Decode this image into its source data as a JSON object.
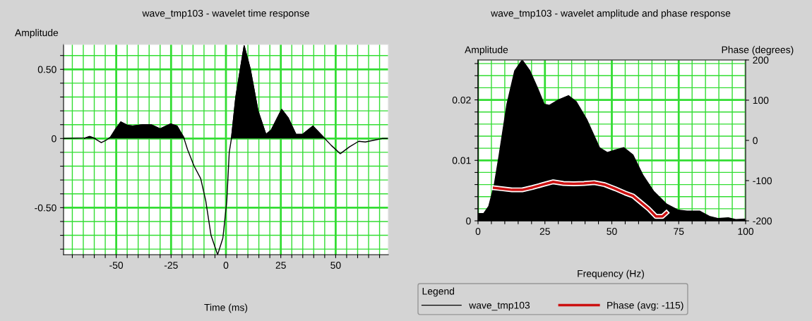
{
  "chart_data": [
    {
      "type": "line",
      "title": "wave_tmp103 - wavelet time response",
      "xlabel": "Time (ms)",
      "ylabel": "Amplitude",
      "xlim": [
        -74,
        74
      ],
      "ylim": [
        -0.84,
        0.68
      ],
      "xticks": [
        {
          "value": -70,
          "label": null
        },
        {
          "value": -65,
          "label": null
        },
        {
          "value": -60,
          "label": null
        },
        {
          "value": -55,
          "label": null
        },
        -50,
        {
          "value": -45,
          "label": null
        },
        {
          "value": -40,
          "label": null
        },
        {
          "value": -35,
          "label": null
        },
        {
          "value": -30,
          "label": null
        },
        -25,
        {
          "value": -20,
          "label": null
        },
        {
          "value": -15,
          "label": null
        },
        {
          "value": -10,
          "label": null
        },
        {
          "value": -5,
          "label": null
        },
        0,
        {
          "value": 5,
          "label": null
        },
        {
          "value": 10,
          "label": null
        },
        {
          "value": 15,
          "label": null
        },
        {
          "value": 20,
          "label": null
        },
        25,
        {
          "value": 30,
          "label": null
        },
        {
          "value": 35,
          "label": null
        },
        {
          "value": 40,
          "label": null
        },
        {
          "value": 45,
          "label": null
        },
        50,
        {
          "value": 55,
          "label": null
        },
        {
          "value": 60,
          "label": null
        },
        {
          "value": 65,
          "label": null
        },
        {
          "value": 70,
          "label": null
        }
      ],
      "yticks": [
        {
          "value": -0.8,
          "label": null
        },
        {
          "value": -0.7,
          "label": null
        },
        {
          "value": -0.6,
          "label": null
        },
        {
          "value": -0.5,
          "label": "-0.50"
        },
        {
          "value": -0.4,
          "label": null
        },
        {
          "value": -0.3,
          "label": null
        },
        {
          "value": -0.2,
          "label": null
        },
        {
          "value": -0.1,
          "label": null
        },
        0,
        {
          "value": 0.1,
          "label": null
        },
        {
          "value": 0.2,
          "label": null
        },
        {
          "value": 0.3,
          "label": null
        },
        {
          "value": 0.4,
          "label": null
        },
        {
          "value": 0.5,
          "label": "0.50"
        },
        {
          "value": 0.6,
          "label": null
        }
      ],
      "grid": true,
      "series": [
        {
          "type": "area",
          "color": "#000000",
          "x": [
            -64.5,
            -64,
            -62.1,
            -60.4,
            -59.5,
            null,
            -53.5,
            -52.6,
            -50.2,
            -47.9,
            -44.9,
            -42.5,
            -37.7,
            -34.2,
            -30,
            -25.2,
            -22.3,
            -19.3,
            -19,
            null,
            2.5,
            4.5,
            8.3,
            11.1,
            14.6,
            18.2,
            20.6,
            25.4,
            28.3,
            31.9,
            34.9,
            39.6,
            45
          ],
          "values": [
            0,
            0.005,
            0.015,
            0.005,
            0,
            null,
            0,
            0.01,
            0.07,
            0.12,
            0.095,
            0.09,
            0.1,
            0.1,
            0.07,
            0.105,
            0.09,
            0.01,
            0,
            null,
            0,
            0.3,
            0.67,
            0.5,
            0.2,
            0.03,
            0.06,
            0.21,
            0.15,
            0.03,
            0.03,
            0.09,
            0
          ]
        },
        {
          "color": "#000000",
          "x": [
            -74,
            -64,
            -62.1,
            -60.4,
            -56.8,
            -54.4,
            -52.6,
            -50.2,
            -47.9,
            -44.9,
            -42.5,
            -37.7,
            -34.2,
            -30,
            -25.2,
            -22.3,
            -19.3,
            -17.5,
            -14.5,
            -11.5,
            -9.2,
            -6.8,
            -3.8,
            -1.4,
            0.4,
            1.5,
            2.5,
            4.5,
            8.3,
            11.1,
            14.6,
            18.2,
            20.6,
            25.4,
            28.3,
            31.9,
            34.9,
            39.6,
            45,
            48,
            52.1,
            56.3,
            60.5,
            63.5,
            68.2,
            71.2,
            74
          ],
          "values": [
            0,
            0.005,
            0.015,
            0.005,
            -0.03,
            -0.01,
            0.01,
            0.07,
            0.12,
            0.095,
            0.09,
            0.1,
            0.1,
            0.07,
            0.105,
            0.09,
            0.01,
            -0.08,
            -0.2,
            -0.29,
            -0.45,
            -0.7,
            -0.84,
            -0.72,
            -0.45,
            -0.1,
            0,
            0.3,
            0.67,
            0.5,
            0.2,
            0.03,
            0.06,
            0.21,
            0.15,
            0.03,
            0.03,
            0.09,
            0,
            -0.05,
            -0.11,
            -0.06,
            -0.02,
            -0.025,
            -0.01,
            0,
            0
          ]
        }
      ]
    },
    {
      "type": "area",
      "title": "wave_tmp103 - wavelet amplitude and phase response",
      "xlabel": "Frequency (Hz)",
      "ylabel": "Amplitude",
      "y2label": "Phase (degrees)",
      "legend_title": "Legend",
      "xlim": [
        0,
        100
      ],
      "ylim": [
        0,
        0.0266
      ],
      "y2lim": [
        -200,
        200
      ],
      "xticks": [
        0,
        {
          "value": 5,
          "label": null
        },
        {
          "value": 10,
          "label": null
        },
        {
          "value": 15,
          "label": null
        },
        {
          "value": 20,
          "label": null
        },
        25,
        {
          "value": 30,
          "label": null
        },
        {
          "value": 35,
          "label": null
        },
        {
          "value": 40,
          "label": null
        },
        {
          "value": 45,
          "label": null
        },
        50,
        {
          "value": 55,
          "label": null
        },
        {
          "value": 60,
          "label": null
        },
        {
          "value": 65,
          "label": null
        },
        {
          "value": 70,
          "label": null
        },
        75,
        {
          "value": 80,
          "label": null
        },
        {
          "value": 85,
          "label": null
        },
        {
          "value": 90,
          "label": null
        },
        {
          "value": 95,
          "label": null
        },
        100
      ],
      "yticks": [
        0,
        {
          "value": 0.002,
          "label": null
        },
        {
          "value": 0.004,
          "label": null
        },
        {
          "value": 0.006,
          "label": null
        },
        {
          "value": 0.008,
          "label": null
        },
        0.01,
        {
          "value": 0.012,
          "label": null
        },
        {
          "value": 0.014,
          "label": null
        },
        {
          "value": 0.016,
          "label": null
        },
        {
          "value": 0.018,
          "label": null
        },
        0.02,
        {
          "value": 0.022,
          "label": null
        },
        {
          "value": 0.024,
          "label": null
        },
        {
          "value": 0.026,
          "label": null
        }
      ],
      "y2ticks": [
        -200,
        -100,
        0,
        100,
        200
      ],
      "grid": true,
      "legend": "bottom",
      "series": [
        {
          "name": "wave_tmp103",
          "color": "#000000",
          "x": [
            0,
            2.1,
            4,
            6,
            7.9,
            10.8,
            13.7,
            16.5,
            19.4,
            22.3,
            24.7,
            26.6,
            30,
            33.8,
            36.7,
            40.6,
            45.4,
            48.3,
            51.2,
            54.5,
            57.9,
            61.7,
            65.6,
            70.4,
            74.7,
            78.1,
            82.9,
            86.7,
            89.6,
            93.5,
            96.3,
            100
          ],
          "values": [
            0.0012,
            0.0012,
            0.0024,
            0.0058,
            0.0109,
            0.0193,
            0.0248,
            0.0266,
            0.0248,
            0.0219,
            0.0193,
            0.0191,
            0.02,
            0.0207,
            0.0197,
            0.0168,
            0.0121,
            0.0113,
            0.0117,
            0.0121,
            0.0109,
            0.0075,
            0.0049,
            0.0028,
            0.0018,
            0.0016,
            0.0016,
            0.0007,
            0.0004,
            0.0005,
            0.0002,
            0.0003
          ]
        },
        {
          "name": "Phase (avg: -115)",
          "type": "line",
          "axis": "y2",
          "color": "#cc1111",
          "x": [
            6,
            8.8,
            12.7,
            16.5,
            20.4,
            24.2,
            28.1,
            31.9,
            35.8,
            39.6,
            43.5,
            47.3,
            51.2,
            55,
            57.9,
            60.8,
            63.7,
            66.5,
            68.9,
            70.4
          ],
          "values": [
            -118,
            -120,
            -123,
            -123,
            -117,
            -110,
            -103,
            -107,
            -108,
            -107,
            -105,
            -110,
            -120,
            -131,
            -138,
            -154,
            -170,
            -189,
            -189,
            -180
          ]
        }
      ]
    }
  ]
}
